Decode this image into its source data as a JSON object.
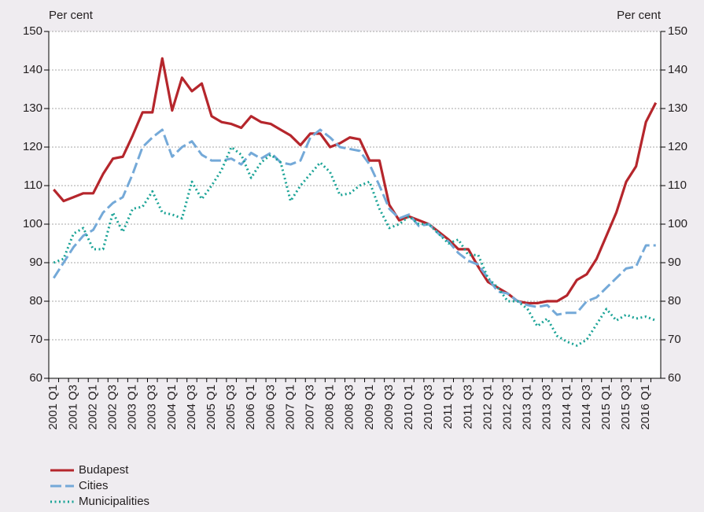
{
  "chart_data": {
    "type": "line",
    "ylabel": "Per cent",
    "y2label": "Per cent",
    "categories": [
      "2001 Q1",
      null,
      "2001 Q3",
      null,
      "2002 Q1",
      null,
      "2002 Q3",
      null,
      "2003 Q1",
      null,
      "2003 Q3",
      null,
      "2004 Q1",
      null,
      "2004 Q3",
      null,
      "2005 Q1",
      null,
      "2005 Q3",
      null,
      "2006 Q1",
      null,
      "2006 Q3",
      null,
      "2007 Q1",
      null,
      "2007 Q3",
      null,
      "2008 Q1",
      null,
      "2008 Q3",
      null,
      "2009 Q1",
      null,
      "2009 Q3",
      null,
      "2010 Q1",
      null,
      "2010 Q3",
      null,
      "2011 Q1",
      null,
      "2011 Q3",
      null,
      "2012 Q1",
      null,
      "2012 Q3",
      null,
      "2013 Q1",
      null,
      "2013 Q3",
      null,
      "2014 Q1",
      null,
      "2014 Q3",
      null,
      "2015 Q1",
      null,
      "2015 Q3",
      null,
      "2016 Q1",
      null
    ],
    "series": [
      {
        "name": "Budapest",
        "color": "#b5262c",
        "style": "solid",
        "values": [
          109,
          106,
          107,
          108,
          108,
          113,
          117,
          117.5,
          123,
          129,
          129,
          143,
          129.5,
          138,
          134.5,
          136.5,
          128,
          126.5,
          126,
          125,
          128,
          126.5,
          126,
          124.5,
          123,
          120.5,
          123.5,
          123.5,
          120,
          121,
          122.5,
          122,
          116.5,
          116.5,
          105,
          101,
          102,
          101,
          100,
          98,
          96,
          93.5,
          93.5,
          89,
          85,
          83.5,
          82,
          80,
          79.5,
          79.5,
          80,
          80,
          81.5,
          85.5,
          87,
          91,
          97,
          103,
          111,
          115,
          126.5,
          131.5
        ]
      },
      {
        "name": "Cities",
        "color": "#74a9d8",
        "style": "dashed",
        "values": [
          86,
          90,
          94,
          97,
          98.5,
          103,
          105.5,
          107,
          113,
          120,
          122.5,
          124.5,
          117.5,
          120,
          121.5,
          118,
          116.5,
          116.5,
          117,
          115.5,
          118.5,
          117,
          118.5,
          116,
          115.5,
          116.5,
          122.5,
          124.5,
          122.5,
          120,
          119.5,
          119,
          115.5,
          110,
          104,
          101.5,
          102.5,
          99.5,
          100,
          97.5,
          95.5,
          92.5,
          90.5,
          89.5,
          86,
          82.5,
          82,
          80,
          79,
          78.5,
          79,
          76.5,
          77,
          77,
          80,
          81,
          83.5,
          86,
          88.5,
          89,
          94.5,
          94.5
        ]
      },
      {
        "name": "Municipalities",
        "color": "#1aa396",
        "style": "dotted",
        "values": [
          90,
          91,
          97.5,
          99,
          93.5,
          93.5,
          103,
          98,
          104,
          104.5,
          108.5,
          103,
          102.5,
          101.5,
          111,
          106.5,
          110,
          114,
          120,
          118,
          112,
          116,
          118,
          116,
          106,
          110,
          113,
          116,
          113.5,
          107.5,
          108,
          110,
          111,
          104,
          99,
          100,
          102,
          100,
          100,
          97.5,
          95,
          96,
          92,
          92,
          86,
          83.5,
          80,
          80,
          78,
          73.5,
          75.5,
          71,
          69.5,
          68.5,
          70,
          74,
          78,
          75,
          76.5,
          75.5,
          76,
          75
        ]
      }
    ],
    "ylim": [
      60,
      150
    ],
    "yticks": [
      60,
      70,
      80,
      90,
      100,
      110,
      120,
      130,
      140,
      150
    ],
    "y2lim": [
      60,
      150
    ],
    "y2ticks": [
      60,
      70,
      80,
      90,
      100,
      110,
      120,
      130,
      140,
      150
    ],
    "grid": true,
    "legend": "bottom-left"
  }
}
